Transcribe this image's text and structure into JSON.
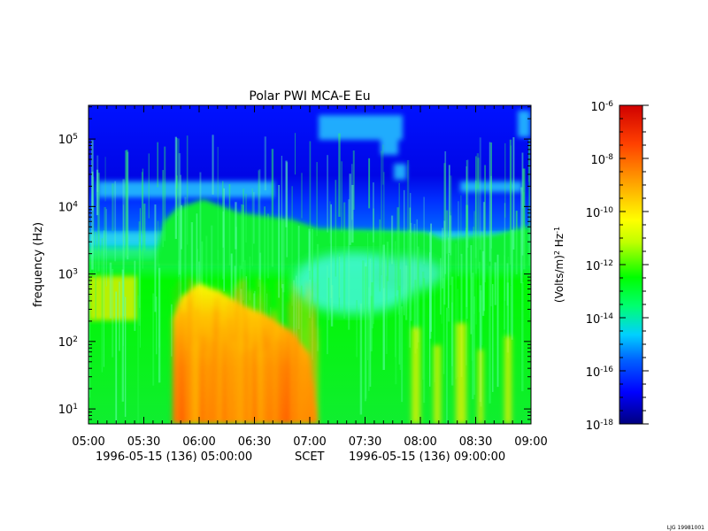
{
  "chart_data": {
    "type": "heatmap",
    "title": "Polar PWI MCA-E Eu",
    "ylabel": "frequency (Hz)",
    "x_ticks": [
      "05:00",
      "05:30",
      "06:00",
      "06:30",
      "07:00",
      "07:30",
      "08:00",
      "08:30",
      "09:00"
    ],
    "x_range_hours": [
      5,
      9
    ],
    "y_scale": "log",
    "y_range_hz": [
      6,
      316000
    ],
    "y_ticks": [
      {
        "value": 10,
        "base": "10",
        "exp": "1"
      },
      {
        "value": 100,
        "base": "10",
        "exp": "2"
      },
      {
        "value": 1000,
        "base": "10",
        "exp": "3"
      },
      {
        "value": 10000,
        "base": "10",
        "exp": "4"
      },
      {
        "value": 100000,
        "base": "10",
        "exp": "5"
      }
    ],
    "footer": {
      "start": "1996-05-15 (136) 05:00:00",
      "scet": "SCET",
      "end": "1996-05-15 (136) 09:00:00"
    },
    "colorbar": {
      "label_main": "(Volts/m)",
      "label_sup1": "2",
      "label_mid": " Hz",
      "label_sup2": "-1",
      "scale": "log",
      "range": [
        1e-18,
        1e-06
      ],
      "ticks": [
        {
          "value": 1e-06,
          "base": "10",
          "exp": "-6"
        },
        {
          "value": 1e-08,
          "base": "10",
          "exp": "-8"
        },
        {
          "value": 1e-10,
          "base": "10",
          "exp": "-10"
        },
        {
          "value": 1e-12,
          "base": "10",
          "exp": "-12"
        },
        {
          "value": 1e-14,
          "base": "10",
          "exp": "-14"
        },
        {
          "value": 1e-16,
          "base": "10",
          "exp": "-16"
        },
        {
          "value": 1e-18,
          "base": "10",
          "exp": "-18"
        }
      ],
      "colors": [
        "#00007f",
        "#0000ff",
        "#0060ff",
        "#00d0ff",
        "#00ff70",
        "#00ff00",
        "#c0ff00",
        "#ffff00",
        "#ffa000",
        "#ff4000",
        "#d00000"
      ]
    },
    "credit": "LJG 19981001"
  }
}
